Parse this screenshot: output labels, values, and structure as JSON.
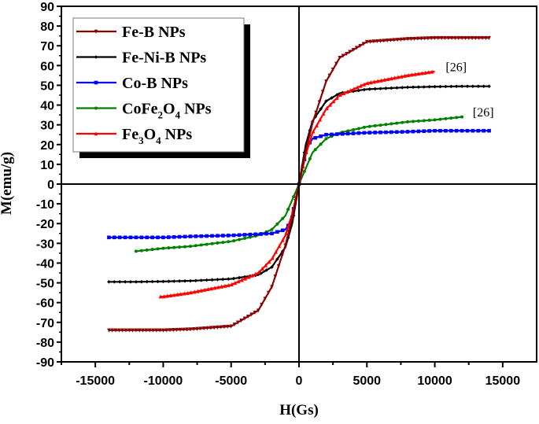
{
  "chart_data": {
    "type": "line",
    "xlabel": "H(Gs)",
    "ylabel": "M(emu/g)",
    "xlim": [
      -17500,
      17500
    ],
    "ylim": [
      -90,
      90
    ],
    "xticks": [
      -15000,
      -10000,
      -5000,
      0,
      5000,
      10000,
      15000
    ],
    "yticks": [
      -90,
      -80,
      -70,
      -60,
      -50,
      -40,
      -30,
      -20,
      -10,
      0,
      10,
      20,
      30,
      40,
      50,
      60,
      70,
      80,
      90
    ],
    "grid": false,
    "legend_placement": "top-left",
    "series": [
      {
        "name": "Fe-B NPs",
        "color": "#8b0000",
        "marker": "triangle-down",
        "x": [
          0,
          500,
          1000,
          2000,
          3000,
          5000,
          8000,
          10000,
          12000,
          14000
        ],
        "y": [
          0,
          17,
          31,
          52,
          64,
          72,
          73.5,
          74,
          74,
          74
        ]
      },
      {
        "name": "Fe-Ni-B NPs",
        "color": "#000000",
        "marker": "diamond",
        "x": [
          0,
          500,
          1000,
          2000,
          3000,
          5000,
          8000,
          10000,
          12000,
          14000
        ],
        "y": [
          0,
          20,
          32,
          42,
          46,
          48,
          49,
          49.3,
          49.5,
          49.5
        ]
      },
      {
        "name": "Co-B NPs",
        "color": "#0000ff",
        "marker": "square",
        "x": [
          0,
          300,
          700,
          1000,
          2000,
          5000,
          8000,
          10000,
          12000,
          14000
        ],
        "y": [
          0,
          10,
          20,
          23,
          25,
          26,
          26.5,
          27,
          27,
          27
        ]
      },
      {
        "name": "CoFe2O4 NPs",
        "color": "#008000",
        "marker": "circle",
        "x": [
          0,
          500,
          1000,
          2000,
          3000,
          5000,
          8000,
          10000,
          12000
        ],
        "y": [
          0,
          8,
          16,
          23,
          26,
          29,
          31.5,
          32.5,
          34
        ]
      },
      {
        "name": "Fe3O4 NPs",
        "color": "#ff0000",
        "marker": "triangle-up",
        "x": [
          0,
          500,
          1000,
          2000,
          3000,
          5000,
          8000,
          10000
        ],
        "y": [
          0,
          15,
          26,
          38,
          45,
          51,
          55,
          57
        ]
      }
    ],
    "legend": [
      {
        "main": "Fe-B NPs"
      },
      {
        "main": "Fe-Ni-B NPs"
      },
      {
        "main": "Co-B NPs"
      },
      {
        "main": "CoFe",
        "sub1": "2",
        "mid": "O",
        "sub2": "4",
        "tail": " NPs"
      },
      {
        "main": "Fe",
        "sub1": "3",
        "mid": "O",
        "sub2": "4",
        "tail": " NPs"
      }
    ],
    "annotations": [
      {
        "text": "[26]",
        "x": 10800,
        "y": 58
      },
      {
        "text": "[26]",
        "x": 12800,
        "y": 35
      }
    ]
  }
}
